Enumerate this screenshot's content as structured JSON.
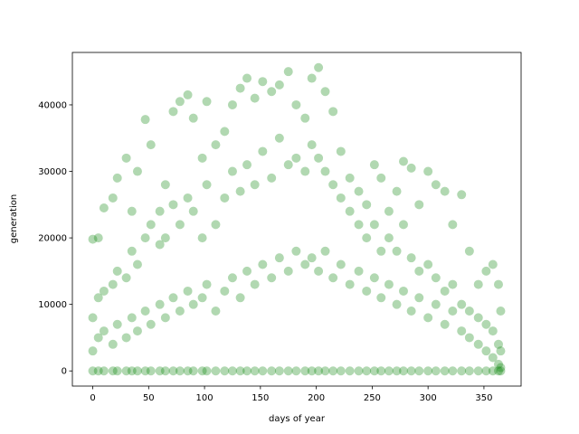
{
  "chart_data": {
    "type": "scatter",
    "xlabel": "days of year",
    "ylabel": "generation",
    "color": "#008000",
    "alpha": 0.3,
    "xlim": [
      -18.25,
      383.25
    ],
    "xticks": [
      0,
      50,
      100,
      150,
      200,
      250,
      300,
      350
    ],
    "ylim": [
      -2280,
      47880
    ],
    "yticks": [
      0,
      10000,
      20000,
      30000,
      40000
    ],
    "x": [
      0,
      0,
      0,
      0,
      5,
      5,
      5,
      5,
      10,
      10,
      10,
      10,
      18,
      18,
      18,
      18,
      22,
      22,
      22,
      22,
      30,
      30,
      30,
      30,
      35,
      35,
      35,
      35,
      40,
      40,
      40,
      40,
      47,
      47,
      47,
      47,
      52,
      52,
      52,
      52,
      60,
      60,
      60,
      60,
      65,
      65,
      65,
      65,
      72,
      72,
      72,
      72,
      78,
      78,
      78,
      78,
      85,
      85,
      85,
      85,
      90,
      90,
      90,
      90,
      98,
      98,
      98,
      98,
      102,
      102,
      102,
      102,
      110,
      110,
      110,
      110,
      118,
      118,
      118,
      118,
      125,
      125,
      125,
      125,
      132,
      132,
      132,
      132,
      138,
      138,
      138,
      138,
      145,
      145,
      145,
      145,
      152,
      152,
      152,
      152,
      160,
      160,
      160,
      160,
      167,
      167,
      167,
      167,
      175,
      175,
      175,
      175,
      182,
      182,
      182,
      182,
      190,
      190,
      190,
      190,
      196,
      196,
      196,
      196,
      202,
      202,
      202,
      202,
      208,
      208,
      208,
      208,
      215,
      215,
      215,
      215,
      222,
      222,
      222,
      222,
      230,
      230,
      230,
      230,
      238,
      238,
      238,
      238,
      245,
      245,
      245,
      245,
      252,
      252,
      252,
      252,
      258,
      258,
      258,
      258,
      265,
      265,
      265,
      265,
      272,
      272,
      272,
      272,
      278,
      278,
      278,
      278,
      285,
      285,
      285,
      285,
      292,
      292,
      292,
      292,
      300,
      300,
      300,
      300,
      307,
      307,
      307,
      307,
      315,
      315,
      315,
      315,
      322,
      322,
      322,
      322,
      330,
      330,
      330,
      330,
      337,
      337,
      337,
      337,
      345,
      345,
      345,
      345,
      352,
      352,
      352,
      352,
      358,
      358,
      358,
      358,
      363,
      363,
      363,
      363,
      365,
      365,
      365,
      365
    ],
    "y": [
      0,
      3000,
      8000,
      19800,
      0,
      5000,
      11000,
      20000,
      0,
      6000,
      12000,
      24500,
      0,
      4000,
      13000,
      26000,
      0,
      7000,
      15000,
      29000,
      0,
      5000,
      14000,
      32000,
      0,
      8000,
      18000,
      24000,
      0,
      6000,
      16000,
      30000,
      0,
      9000,
      20000,
      37800,
      0,
      7000,
      22000,
      34000,
      0,
      10000,
      19000,
      24000,
      0,
      8000,
      20000,
      28000,
      0,
      11000,
      25000,
      39000,
      0,
      9000,
      22000,
      40500,
      0,
      12000,
      26000,
      41500,
      0,
      10000,
      24000,
      38000,
      0,
      11000,
      20000,
      32000,
      0,
      13000,
      28000,
      40500,
      0,
      9000,
      22000,
      34000,
      0,
      12000,
      26000,
      36000,
      0,
      14000,
      30000,
      40000,
      0,
      11000,
      27000,
      42500,
      0,
      15000,
      31000,
      44000,
      0,
      13000,
      28000,
      41000,
      0,
      16000,
      33000,
      43500,
      0,
      14000,
      29000,
      42000,
      0,
      17000,
      35000,
      43000,
      0,
      15000,
      31000,
      45000,
      0,
      18000,
      32000,
      40000,
      0,
      16000,
      30000,
      38000,
      0,
      17000,
      34000,
      44000,
      0,
      15000,
      32000,
      45600,
      0,
      18000,
      30000,
      42000,
      0,
      14000,
      28000,
      39000,
      0,
      16000,
      26000,
      33000,
      0,
      13000,
      24000,
      29000,
      0,
      15000,
      22000,
      27000,
      0,
      12000,
      20000,
      25000,
      0,
      14000,
      22000,
      31000,
      0,
      11000,
      18000,
      29000,
      0,
      13000,
      20000,
      24000,
      0,
      10000,
      18000,
      27000,
      0,
      12000,
      22000,
      31500,
      0,
      9000,
      17000,
      30500,
      0,
      11000,
      15000,
      25000,
      0,
      8000,
      16000,
      30000,
      0,
      10000,
      14000,
      28000,
      0,
      7000,
      12000,
      27000,
      0,
      9000,
      13000,
      22000,
      0,
      6000,
      10000,
      26500,
      0,
      5000,
      9000,
      18000,
      0,
      4000,
      8000,
      13000,
      0,
      3000,
      7000,
      15000,
      0,
      2000,
      6000,
      16000,
      0,
      1000,
      4000,
      13000,
      0,
      500,
      3000,
      9000
    ]
  }
}
